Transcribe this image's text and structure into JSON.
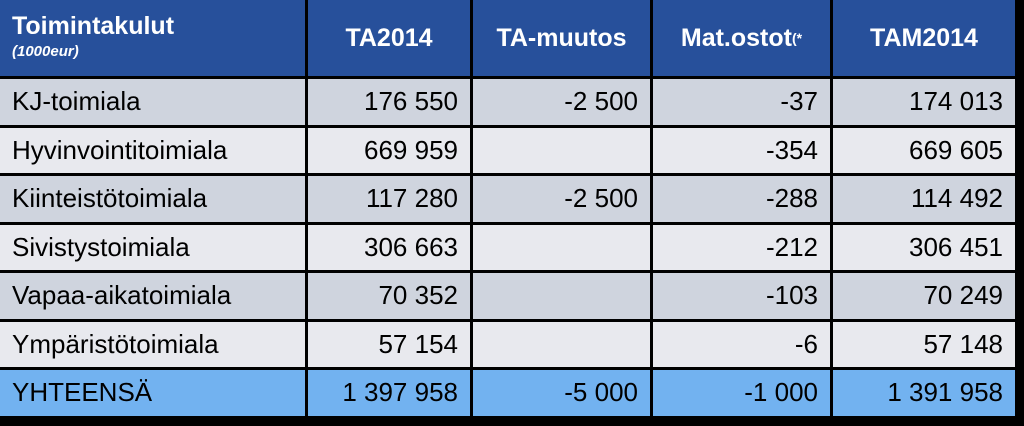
{
  "header": {
    "columns": [
      "Toimintakulut",
      "TA2014",
      "TA-muutos",
      "Mat.ostot",
      "TAM2014"
    ],
    "superscript": "(*",
    "unit": "(1000eur)"
  },
  "table": {
    "rows": [
      [
        "KJ-toimiala",
        "176 550",
        "-2 500",
        "-37",
        "174 013"
      ],
      [
        "Hyvinvointitoimiala",
        "669 959",
        null,
        "-354",
        "669 605"
      ],
      [
        "Kiinteistötoimiala",
        "117 280",
        "-2 500",
        "-288",
        "114 492"
      ],
      [
        "Sivistystoimiala",
        "306 663",
        null,
        "-212",
        "306 451"
      ],
      [
        "Vapaa-aikatoimiala",
        "70 352",
        null,
        "-103",
        "70 249"
      ],
      [
        "Ympäristötoimiala",
        "57 154",
        null,
        "-6",
        "57 148"
      ]
    ],
    "total": [
      "YHTEENSÄ",
      "1 397 958",
      "-5 000",
      "-1 000",
      "1 391 958"
    ]
  }
}
